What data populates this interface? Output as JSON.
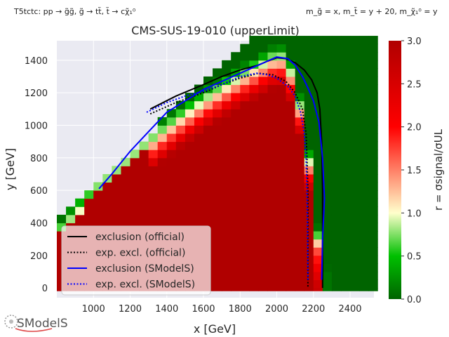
{
  "header": {
    "left_note": "T5tctc: pp → g̃g̃, g̃ → tt̃, t̃ → cχ̃₁⁰",
    "right_note": "m_g̃ = x, m_t̃ = y + 20, m_χ̃₁⁰ = y"
  },
  "logo_text": "SModelS",
  "chart_data": {
    "type": "heatmap",
    "title": "CMS-SUS-19-010 (upperLimit)",
    "xlabel": "x [GeV]",
    "ylabel": "y [GeV]",
    "colorbar_label": "r = σsignal/σUL",
    "xlim": [
      800,
      2530
    ],
    "ylim": [
      -60,
      1520
    ],
    "xticks": [
      1000,
      1200,
      1400,
      1600,
      1800,
      2000,
      2200,
      2400
    ],
    "yticks": [
      0,
      200,
      400,
      600,
      800,
      1000,
      1200,
      1400
    ],
    "colorbar_range": [
      0.0,
      3.0
    ],
    "colorbar_ticks": [
      0.0,
      0.5,
      1.0,
      1.5,
      2.0,
      2.5,
      3.0
    ],
    "colormap": [
      "#006400",
      "#00c000",
      "#ffffcc",
      "#ff0000",
      "#b00000"
    ],
    "grid": true,
    "background": "#eaeaf2",
    "series": [
      {
        "name": "exclusion (official)",
        "style": "solid",
        "color": "#000000",
        "points": [
          [
            1310,
            1100
          ],
          [
            1450,
            1180
          ],
          [
            1600,
            1250
          ],
          [
            1700,
            1300
          ],
          [
            1800,
            1340
          ],
          [
            1900,
            1370
          ],
          [
            1950,
            1395
          ],
          [
            2000,
            1415
          ],
          [
            2050,
            1410
          ],
          [
            2100,
            1385
          ],
          [
            2150,
            1340
          ],
          [
            2190,
            1280
          ],
          [
            2220,
            1200
          ],
          [
            2235,
            1100
          ],
          [
            2245,
            900
          ],
          [
            2250,
            600
          ],
          [
            2250,
            300
          ],
          [
            2250,
            0
          ]
        ]
      },
      {
        "name": "exp. excl. (official)",
        "style": "dotted",
        "color": "#000000",
        "points": [
          [
            1310,
            1070
          ],
          [
            1450,
            1140
          ],
          [
            1600,
            1200
          ],
          [
            1700,
            1250
          ],
          [
            1800,
            1290
          ],
          [
            1900,
            1320
          ],
          [
            1980,
            1310
          ],
          [
            2050,
            1270
          ],
          [
            2100,
            1200
          ],
          [
            2140,
            1100
          ],
          [
            2160,
            950
          ],
          [
            2165,
            800
          ],
          [
            2170,
            600
          ],
          [
            2170,
            300
          ],
          [
            2170,
            0
          ]
        ]
      },
      {
        "name": "exclusion (SModelS)",
        "style": "solid",
        "color": "#0000ff",
        "points": [
          [
            1030,
            610
          ],
          [
            1100,
            700
          ],
          [
            1200,
            840
          ],
          [
            1300,
            960
          ],
          [
            1400,
            1080
          ],
          [
            1500,
            1150
          ],
          [
            1600,
            1220
          ],
          [
            1700,
            1270
          ],
          [
            1800,
            1320
          ],
          [
            1900,
            1370
          ],
          [
            2000,
            1420
          ],
          [
            2060,
            1410
          ],
          [
            2100,
            1370
          ],
          [
            2140,
            1300
          ],
          [
            2170,
            1230
          ],
          [
            2200,
            1150
          ],
          [
            2230,
            1020
          ],
          [
            2250,
            800
          ],
          [
            2260,
            550
          ],
          [
            2250,
            300
          ],
          [
            2245,
            50
          ]
        ]
      },
      {
        "name": "exp. excl. (SModelS)",
        "style": "dotted",
        "color": "#0000ff",
        "points": [
          [
            1290,
            1080
          ],
          [
            1400,
            1140
          ],
          [
            1500,
            1180
          ],
          [
            1600,
            1210
          ],
          [
            1700,
            1250
          ],
          [
            1800,
            1300
          ],
          [
            1890,
            1320
          ],
          [
            1950,
            1310
          ],
          [
            2000,
            1290
          ],
          [
            2060,
            1240
          ],
          [
            2100,
            1180
          ],
          [
            2130,
            1080
          ],
          [
            2150,
            950
          ],
          [
            2160,
            800
          ],
          [
            2165,
            600
          ],
          [
            2168,
            300
          ],
          [
            2170,
            50
          ]
        ]
      }
    ]
  }
}
